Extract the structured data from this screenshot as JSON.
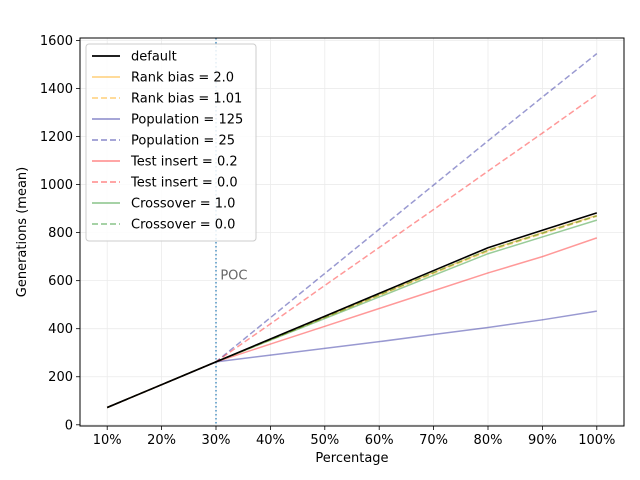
{
  "chart_data": {
    "type": "line",
    "title": "",
    "xlabel": "Percentage",
    "ylabel": "Generations (mean)",
    "categories": [
      "10%",
      "20%",
      "30%",
      "40%",
      "50%",
      "60%",
      "70%",
      "80%",
      "90%",
      "100%"
    ],
    "x": [
      10,
      20,
      30,
      40,
      50,
      60,
      70,
      80,
      90,
      100
    ],
    "xlim": [
      5,
      105
    ],
    "ylim": [
      -5,
      1610
    ],
    "yticks": [
      0,
      200,
      400,
      600,
      800,
      1000,
      1200,
      1400,
      1600
    ],
    "grid": true,
    "legend_position": "top-left",
    "vline": {
      "x": 30,
      "color": "#1f77b4",
      "style": "dotted"
    },
    "annotations": [
      {
        "text": "POC",
        "x": 30.8,
        "y": 605
      }
    ],
    "series": [
      {
        "name": "default",
        "color": "#000000",
        "dash": "solid",
        "alpha": 1.0,
        "width": 1.6,
        "values": [
          72,
          167,
          262,
          357,
          452,
          547,
          642,
          737,
          810,
          882
        ]
      },
      {
        "name": "Rank bias = 2.0",
        "color": "#ffa500",
        "dash": "solid",
        "alpha": 0.45,
        "width": 1.5,
        "values": [
          72,
          167,
          262,
          355,
          448,
          541,
          634,
          727,
          800,
          872
        ]
      },
      {
        "name": "Rank bias = 1.01",
        "color": "#ffa500",
        "dash": "dashed",
        "alpha": 0.45,
        "width": 1.5,
        "values": [
          72,
          167,
          262,
          354,
          446,
          538,
          630,
          722,
          795,
          868
        ]
      },
      {
        "name": "Population = 125",
        "color": "#00008b",
        "dash": "solid",
        "alpha": 0.4,
        "width": 1.5,
        "values": [
          72,
          167,
          262,
          290,
          318,
          346,
          376,
          405,
          437,
          473
        ]
      },
      {
        "name": "Population = 25",
        "color": "#00008b",
        "dash": "dashed",
        "alpha": 0.4,
        "width": 1.5,
        "values": [
          72,
          167,
          262,
          446,
          630,
          814,
          998,
          1182,
          1364,
          1545
        ]
      },
      {
        "name": "Test insert = 0.2",
        "color": "#ff0000",
        "dash": "solid",
        "alpha": 0.4,
        "width": 1.5,
        "values": [
          72,
          167,
          262,
          336,
          410,
          484,
          558,
          632,
          700,
          778
        ]
      },
      {
        "name": "Test insert = 0.0",
        "color": "#ff0000",
        "dash": "dashed",
        "alpha": 0.4,
        "width": 1.5,
        "values": [
          72,
          167,
          262,
          420,
          580,
          738,
          896,
          1056,
          1214,
          1375
        ]
      },
      {
        "name": "Crossover = 1.0",
        "color": "#008000",
        "dash": "solid",
        "alpha": 0.4,
        "width": 1.5,
        "values": [
          72,
          167,
          262,
          352,
          442,
          532,
          622,
          712,
          782,
          852
        ]
      },
      {
        "name": "Crossover = 0.0",
        "color": "#008000",
        "dash": "dashed",
        "alpha": 0.4,
        "width": 1.5,
        "values": [
          72,
          167,
          262,
          355,
          448,
          541,
          634,
          727,
          798,
          870
        ]
      }
    ]
  }
}
